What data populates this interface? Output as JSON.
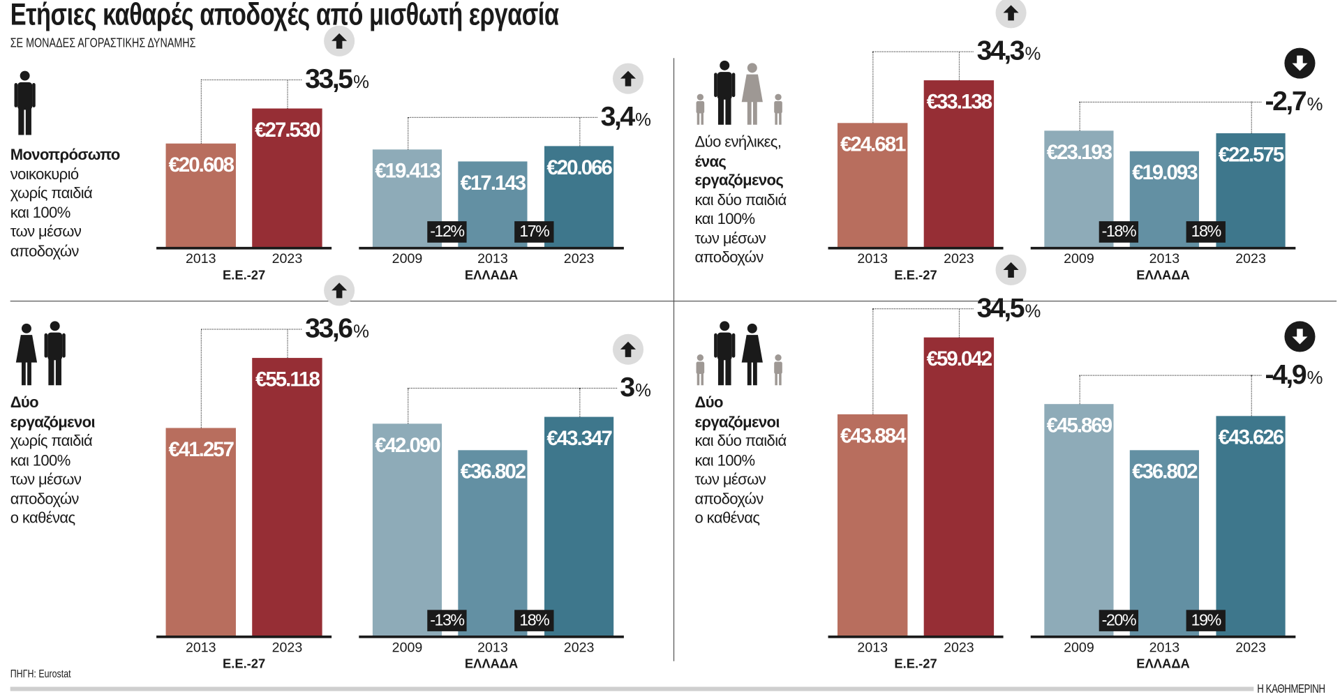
{
  "title": "Ετήσιες καθαρές αποδοχές από μισθωτή εργασία",
  "subtitle": "ΣΕ ΜΟΝΑΔΕΣ ΑΓΟΡΑΣΤΙΚΗΣ ΔΥΝΑΜΗΣ",
  "source": "ΠΗΓΗ: Eurostat",
  "brand": "Η ΚΑΘΗΜΕΡΙΝΗ",
  "colors": {
    "eu_2013": "#b86e5e",
    "eu_2023": "#962e35",
    "gr_2009": "#8eabb8",
    "gr_2013": "#6390a3",
    "gr_2023": "#3e778c",
    "badge": "#1a1a1a",
    "arrow_up_bg": "#dcdcdc",
    "arrow_down_bg": "#1a1a1a"
  },
  "panels": [
    {
      "icon": "single-adult-icon",
      "text": [
        {
          "t": "Μονοπρόσωπο",
          "bold": true
        },
        {
          "t": "νοικοκυριό",
          "bold": false
        },
        {
          "t": "χωρίς παιδιά",
          "bold": false
        },
        {
          "t": "και 100%",
          "bold": false
        },
        {
          "t": "των μέσων",
          "bold": false
        },
        {
          "t": "αποδοχών",
          "bold": false
        }
      ]
    },
    {
      "icon": "family-one-earner-icon",
      "text": [
        {
          "t": "Δύο ενήλικες,",
          "bold": false
        },
        {
          "t": "ένας",
          "bold": true
        },
        {
          "t": "εργαζόμενος",
          "bold": true
        },
        {
          "t": "και δύο παιδιά",
          "bold": false
        },
        {
          "t": "και 100%",
          "bold": false
        },
        {
          "t": "των μέσων",
          "bold": false
        },
        {
          "t": "αποδοχών",
          "bold": false
        }
      ]
    },
    {
      "icon": "couple-icon",
      "text": [
        {
          "t": "Δύο",
          "bold": true
        },
        {
          "t": "εργαζόμενοι",
          "bold": true
        },
        {
          "t": "χωρίς παιδιά",
          "bold": false
        },
        {
          "t": "και 100%",
          "bold": false
        },
        {
          "t": "των μέσων",
          "bold": false
        },
        {
          "t": "αποδοχών",
          "bold": false
        },
        {
          "t": "ο καθένας",
          "bold": false
        }
      ]
    },
    {
      "icon": "family-two-earners-icon",
      "text": [
        {
          "t": "Δύο",
          "bold": true
        },
        {
          "t": "εργαζόμενοι",
          "bold": true
        },
        {
          "t": "και δύο παιδιά",
          "bold": false
        },
        {
          "t": "και 100%",
          "bold": false
        },
        {
          "t": "των μέσων",
          "bold": false
        },
        {
          "t": "αποδοχών",
          "bold": false
        },
        {
          "t": "ο καθένας",
          "bold": false
        }
      ]
    }
  ],
  "chart_data": [
    {
      "type": "bar",
      "unit": "€",
      "groups": [
        {
          "label": "Ε.Ε.-27",
          "categories": [
            "2013",
            "2023"
          ],
          "values": [
            20608,
            27530
          ],
          "change": "33,5",
          "direction": "up"
        },
        {
          "label": "ΕΛΛΑΔΑ",
          "categories": [
            "2009",
            "2013",
            "2023"
          ],
          "values": [
            19413,
            17143,
            20066
          ],
          "change": "3,4",
          "direction": "up",
          "step_changes": [
            "-12%",
            "17%"
          ]
        }
      ]
    },
    {
      "type": "bar",
      "unit": "€",
      "groups": [
        {
          "label": "Ε.Ε.-27",
          "categories": [
            "2013",
            "2023"
          ],
          "values": [
            24681,
            33138
          ],
          "change": "34,3",
          "direction": "up"
        },
        {
          "label": "ΕΛΛΑΔΑ",
          "categories": [
            "2009",
            "2013",
            "2023"
          ],
          "values": [
            23193,
            19093,
            22575
          ],
          "change": "-2,7",
          "direction": "down",
          "step_changes": [
            "-18%",
            "18%"
          ]
        }
      ]
    },
    {
      "type": "bar",
      "unit": "€",
      "groups": [
        {
          "label": "Ε.Ε.-27",
          "categories": [
            "2013",
            "2023"
          ],
          "values": [
            41257,
            55118
          ],
          "change": "33,6",
          "direction": "up"
        },
        {
          "label": "ΕΛΛΑΔΑ",
          "categories": [
            "2009",
            "2013",
            "2023"
          ],
          "values": [
            42090,
            36802,
            43347
          ],
          "change": "3",
          "direction": "up",
          "step_changes": [
            "-13%",
            "18%"
          ]
        }
      ]
    },
    {
      "type": "bar",
      "unit": "€",
      "groups": [
        {
          "label": "Ε.Ε.-27",
          "categories": [
            "2013",
            "2023"
          ],
          "values": [
            43884,
            59042
          ],
          "change": "34,5",
          "direction": "up"
        },
        {
          "label": "ΕΛΛΑΔΑ",
          "categories": [
            "2009",
            "2013",
            "2023"
          ],
          "values": [
            45869,
            36802,
            43626
          ],
          "change": "-4,9",
          "direction": "down",
          "step_changes": [
            "-20%",
            "19%"
          ]
        }
      ]
    }
  ]
}
